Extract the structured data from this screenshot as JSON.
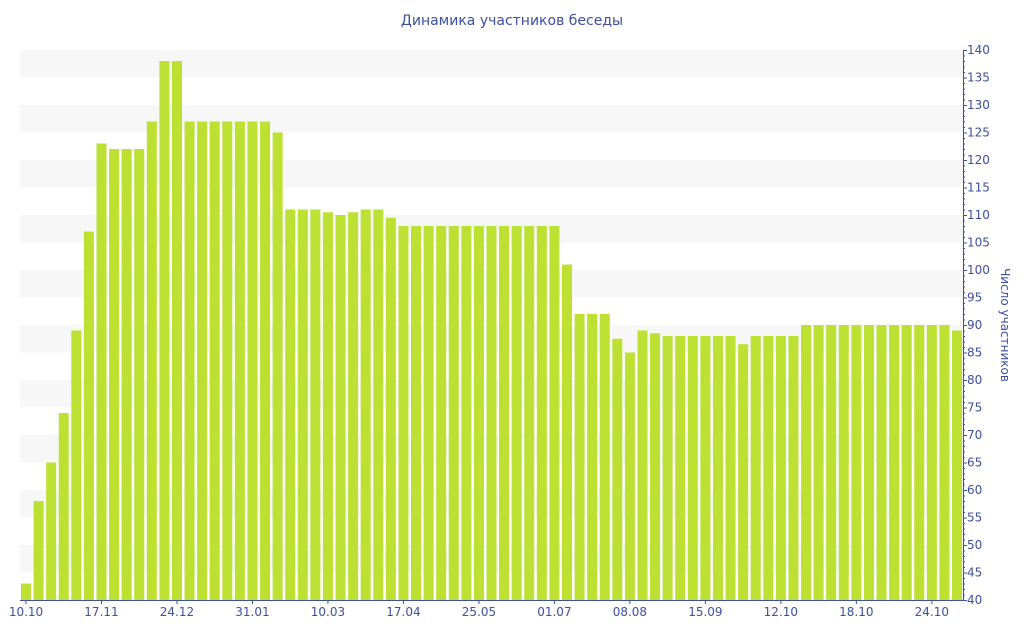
{
  "chart_data": {
    "type": "bar",
    "title": "Динамика участников беседы",
    "xlabel": "",
    "ylabel": "Число участников",
    "ylim": [
      40,
      140
    ],
    "ytick_step": 5,
    "y_axis_side": "right",
    "grid": "alternating horizontal bands",
    "bar_color": "#bde032",
    "text_color": "#3d4f9f",
    "band_color": "#f7f7f7",
    "x_tick_labels": [
      "10.10",
      "17.11",
      "24.12",
      "31.01",
      "10.03",
      "17.04",
      "25.05",
      "01.07",
      "08.08",
      "15.09",
      "12.10",
      "18.10",
      "24.10"
    ],
    "x_tick_every_n_bars": 6,
    "values": [
      43,
      58,
      65,
      74,
      89,
      107,
      123,
      122,
      122,
      122,
      127,
      138,
      138,
      127,
      127,
      127,
      127,
      127,
      127,
      127,
      125,
      111,
      111,
      111,
      110.5,
      110,
      110.5,
      111,
      111,
      109.5,
      108,
      108,
      108,
      108,
      108,
      108,
      108,
      108,
      108,
      108,
      108,
      108,
      108,
      101,
      92,
      92,
      92,
      87.5,
      85,
      89,
      88.5,
      88,
      88,
      88,
      88,
      88,
      88,
      86.5,
      88,
      88,
      88,
      88,
      90,
      90,
      90,
      90,
      90,
      90,
      90,
      90,
      90,
      90,
      90,
      90,
      89
    ]
  }
}
